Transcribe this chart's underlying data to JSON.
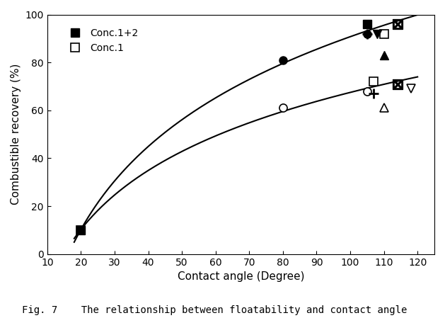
{
  "title": "",
  "xlabel": "Contact angle (Degree)",
  "ylabel": "Combustible recovery (%)",
  "caption": "Fig. 7    The relationship between floatability and contact angle",
  "xlim": [
    10,
    125
  ],
  "ylim": [
    0,
    100
  ],
  "xticks": [
    10,
    20,
    30,
    40,
    50,
    60,
    70,
    80,
    90,
    100,
    110,
    120
  ],
  "yticks": [
    0,
    20,
    40,
    60,
    80,
    100
  ],
  "curve1_x": [
    20,
    80,
    105
  ],
  "curve1_y": [
    10,
    81,
    92
  ],
  "curve2_x": [
    20,
    80,
    105
  ],
  "curve2_y": [
    10,
    61,
    68
  ],
  "scatter_upper": {
    "filled_square": {
      "x": [
        20,
        105
      ],
      "y": [
        10,
        96
      ]
    },
    "filled_circle": {
      "x": [
        80,
        105
      ],
      "y": [
        81,
        92
      ]
    },
    "filled_triangle_up": {
      "x": [
        110
      ],
      "y": [
        83
      ]
    },
    "filled_down_triangle": {
      "x": [
        118
      ],
      "y": [
        93
      ]
    },
    "plus": {
      "x": [
        105
      ],
      "y": [
        92
      ]
    },
    "slash_square": {
      "x": [
        115
      ],
      "y": [
        96
      ]
    }
  },
  "scatter_lower": {
    "open_square": {
      "x": [
        20,
        80,
        107
      ],
      "y": [
        10,
        61,
        72
      ]
    },
    "open_circle": {
      "x": [
        80,
        105
      ],
      "y": [
        61,
        92
      ]
    },
    "open_triangle_up": {
      "x": [
        110
      ],
      "y": [
        61
      ]
    },
    "open_down_triangle": {
      "x": [
        118
      ],
      "y": [
        69
      ]
    },
    "plus": {
      "x": [
        107
      ],
      "y": [
        67
      ]
    },
    "slash_square": {
      "x": [
        113
      ],
      "y": [
        71
      ]
    }
  },
  "legend_labels": [
    "Conc.1+2",
    "Conc.1"
  ],
  "background_color": "#ffffff",
  "line_color": "#000000",
  "marker_color": "#000000"
}
